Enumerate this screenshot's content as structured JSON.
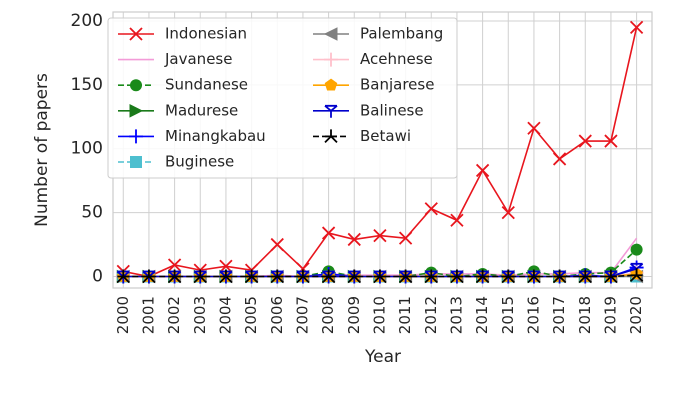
{
  "chart_data": {
    "type": "line",
    "x_label": "Year",
    "y_label": "Number of papers",
    "x": [
      2000,
      2001,
      2002,
      2003,
      2004,
      2005,
      2006,
      2007,
      2008,
      2009,
      2010,
      2011,
      2012,
      2013,
      2014,
      2015,
      2016,
      2017,
      2018,
      2019,
      2020
    ],
    "xlim": [
      1999.6,
      2020.6
    ],
    "xticks": [
      2000,
      2001,
      2002,
      2003,
      2004,
      2005,
      2006,
      2007,
      2008,
      2009,
      2010,
      2011,
      2012,
      2013,
      2014,
      2015,
      2016,
      2017,
      2018,
      2019,
      2020
    ],
    "ylim": [
      -9,
      207
    ],
    "yticks": [
      0,
      50,
      100,
      150,
      200
    ],
    "grid": true,
    "legend_position": "upper-left",
    "legend_columns": 2,
    "series": [
      {
        "name": "Indonesian",
        "color": "#e8161e",
        "marker": "x",
        "dash": "solid",
        "values": [
          4,
          0,
          9,
          5,
          8,
          5,
          25,
          6,
          34,
          29,
          32,
          30,
          53,
          44,
          83,
          50,
          116,
          92,
          106,
          106,
          195
        ]
      },
      {
        "name": "Javanese",
        "color": "#f39bd8",
        "marker": "none",
        "dash": "solid",
        "values": [
          0,
          0,
          0,
          0,
          0,
          0,
          1,
          0,
          2,
          1,
          1,
          1,
          2,
          2,
          2,
          1,
          2,
          2,
          3,
          3,
          30
        ]
      },
      {
        "name": "Sundanese",
        "color": "#1a8a1a",
        "marker": "circle",
        "dash": "dashed",
        "values": [
          0,
          0,
          0,
          0,
          0,
          0,
          0,
          0,
          4,
          0,
          0,
          0,
          3,
          0,
          2,
          0,
          4,
          0,
          2,
          3,
          21
        ]
      },
      {
        "name": "Madurese",
        "color": "#1a7a1a",
        "marker": "tri-right",
        "dash": "solid",
        "values": [
          0,
          0,
          0,
          0,
          0,
          0,
          0,
          0,
          0,
          0,
          0,
          0,
          0,
          0,
          0,
          0,
          0,
          0,
          0,
          0,
          1
        ]
      },
      {
        "name": "Minangkabau",
        "color": "#0000ff",
        "marker": "plus",
        "dash": "solid",
        "values": [
          0,
          0,
          0,
          0,
          0,
          0,
          0,
          0,
          2,
          0,
          0,
          0,
          0,
          0,
          0,
          0,
          0,
          0,
          1,
          0,
          7
        ]
      },
      {
        "name": "Buginese",
        "color": "#4dbfcf",
        "marker": "square",
        "dash": "dashed",
        "values": [
          0,
          0,
          0,
          0,
          0,
          0,
          0,
          0,
          0,
          0,
          0,
          0,
          0,
          0,
          0,
          0,
          0,
          0,
          0,
          0,
          0
        ]
      },
      {
        "name": "Palembang",
        "color": "#808080",
        "marker": "tri-left",
        "dash": "solid",
        "values": [
          0,
          0,
          0,
          0,
          0,
          0,
          0,
          0,
          0,
          0,
          0,
          0,
          0,
          0,
          0,
          0,
          0,
          0,
          0,
          0,
          0
        ]
      },
      {
        "name": "Acehnese",
        "color": "#ffc0cb",
        "marker": "plus",
        "dash": "solid",
        "values": [
          0,
          0,
          0,
          0,
          0,
          0,
          0,
          0,
          0,
          0,
          0,
          0,
          0,
          0,
          0,
          0,
          0,
          0,
          0,
          0,
          3
        ]
      },
      {
        "name": "Banjarese",
        "color": "#ffa500",
        "marker": "pentagon",
        "dash": "solid",
        "values": [
          0,
          0,
          0,
          0,
          0,
          0,
          0,
          0,
          0,
          0,
          0,
          0,
          0,
          0,
          0,
          0,
          0,
          0,
          0,
          0,
          2
        ]
      },
      {
        "name": "Balinese",
        "color": "#0000cc",
        "marker": "tri-down",
        "dash": "solid",
        "values": [
          0,
          0,
          0,
          0,
          0,
          0,
          0,
          0,
          0,
          0,
          0,
          0,
          0,
          0,
          0,
          0,
          0,
          0,
          0,
          0,
          6
        ]
      },
      {
        "name": "Betawi",
        "color": "#000000",
        "marker": "star",
        "dash": "dashed",
        "values": [
          0,
          0,
          0,
          0,
          0,
          0,
          0,
          0,
          0,
          0,
          0,
          0,
          0,
          0,
          0,
          0,
          0,
          0,
          0,
          0,
          1
        ]
      }
    ]
  }
}
